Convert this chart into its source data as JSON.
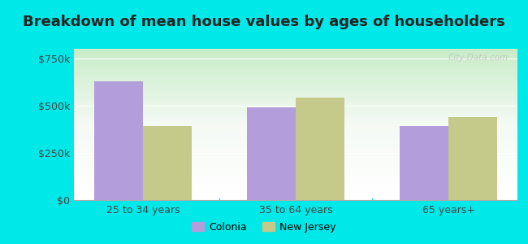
{
  "title": "Breakdown of mean house values by ages of householders",
  "categories": [
    "25 to 34 years",
    "35 to 64 years",
    "65 years+"
  ],
  "colonia_values": [
    630000,
    490000,
    390000
  ],
  "nj_values": [
    390000,
    540000,
    440000
  ],
  "colonia_color": "#b39ddb",
  "nj_color": "#c5c98a",
  "background_outer": "#00e8e8",
  "background_inner_top": "#f0f8f0",
  "background_inner_bottom": "#d8f0d8",
  "ylim": [
    0,
    800000
  ],
  "yticks": [
    0,
    250000,
    500000,
    750000
  ],
  "ytick_labels": [
    "$0",
    "$250k",
    "$500k",
    "$750k"
  ],
  "legend_colonia": "Colonia",
  "legend_nj": "New Jersey",
  "bar_width": 0.32,
  "title_fontsize": 13,
  "tick_fontsize": 9,
  "legend_fontsize": 9,
  "title_color": "#222222",
  "tick_color": "#444444"
}
